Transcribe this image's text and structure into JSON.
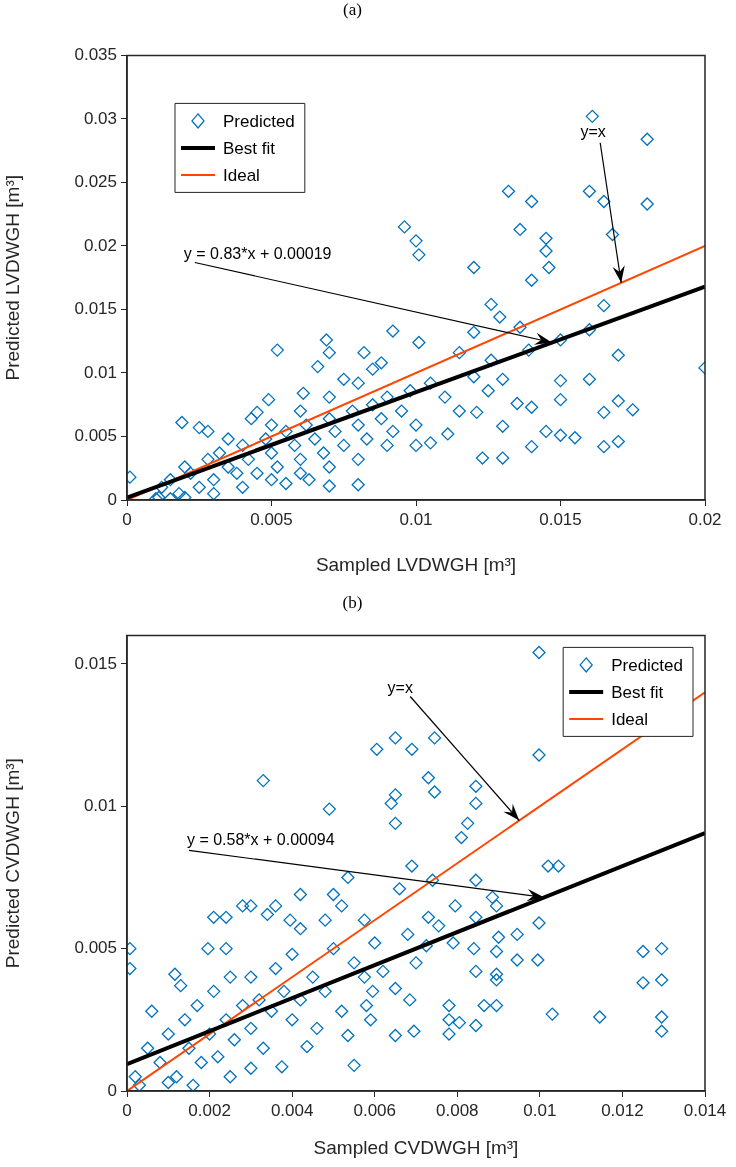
{
  "chart_data": [
    {
      "type": "scatter",
      "title": "(a)",
      "xlabel": "Sampled LVDWGH [m³]",
      "ylabel": "Predicted LVDWGH [m³]",
      "xlim": [
        0,
        0.02
      ],
      "xticks": [
        0,
        0.005,
        0.01,
        0.015,
        0.02
      ],
      "ylim": [
        0,
        0.035
      ],
      "yticks": [
        0,
        0.005,
        0.01,
        0.015,
        0.02,
        0.025,
        0.03,
        0.035
      ],
      "legend": "top left",
      "annotations": [
        {
          "text": "y = 0.83*x + 0.00019",
          "x": 0.0147,
          "y": 0.0124
        },
        {
          "text": "y=x",
          "x": 0.0171,
          "y": 0.0171
        }
      ],
      "series": [
        {
          "name": "Predicted",
          "marker": "diamond",
          "color": "#0072bd",
          "x": [
            0.018,
            0.0161,
            0.0132,
            0.014,
            0.016,
            0.0165,
            0.018,
            0.0136,
            0.0145,
            0.0145,
            0.0146,
            0.0168,
            0.012,
            0.014,
            0.0165,
            0.017,
            0.02,
            0.016,
            0.017,
            0.0175,
            0.0165,
            0.0165,
            0.017,
            0.015,
            0.0155,
            0.014,
            0.0145,
            0.013,
            0.0123,
            0.015,
            0.015,
            0.016,
            0.015,
            0.0136,
            0.0126,
            0.0129,
            0.014,
            0.013,
            0.0121,
            0.013,
            0.0135,
            0.0111,
            0.0105,
            0.0115,
            0.012,
            0.0126,
            0.0139,
            0.0096,
            0.01,
            0.0101,
            0.0092,
            0.0052,
            0.0069,
            0.007,
            0.0082,
            0.0101,
            0.0019,
            0.0001,
            0.0011,
            0.007,
            0.008,
            0.0025,
            0.0045,
            0.0049,
            0.0061,
            0.0066,
            0.0085,
            0.0088,
            0.0075,
            0.001,
            0.0012,
            0.0015,
            0.0018,
            0.002,
            0.0022,
            0.0025,
            0.0028,
            0.003,
            0.0032,
            0.0035,
            0.0038,
            0.004,
            0.0042,
            0.0045,
            0.0048,
            0.005,
            0.0052,
            0.0055,
            0.0058,
            0.006,
            0.0062,
            0.0065,
            0.0068,
            0.007,
            0.0072,
            0.0075,
            0.0078,
            0.008,
            0.0083,
            0.0085,
            0.0088,
            0.009,
            0.0092,
            0.0095,
            0.0098,
            0.01,
            0.0105,
            0.011,
            0.0115,
            0.012,
            0.0125,
            0.003,
            0.004,
            0.005,
            0.006,
            0.007,
            0.002,
            0.0015,
            0.0055,
            0.0063,
            0.008,
            0.009,
            0.01,
            0.0035,
            0.0028,
            0.005,
            0.006,
            0.007,
            0.008,
            0.0043
          ],
          "values": [
            0.0284,
            0.0302,
            0.0243,
            0.0235,
            0.0243,
            0.0235,
            0.0233,
            0.0213,
            0.0206,
            0.0196,
            0.0183,
            0.0209,
            0.0183,
            0.0173,
            0.0153,
            0.0114,
            0.0104,
            0.0095,
            0.0078,
            0.0071,
            0.0069,
            0.0042,
            0.0046,
            0.0051,
            0.0049,
            0.0042,
            0.0054,
            0.0033,
            0.0033,
            0.0094,
            0.0079,
            0.0134,
            0.0126,
            0.0136,
            0.0154,
            0.0144,
            0.0073,
            0.0058,
            0.0069,
            0.0095,
            0.0076,
            0.0052,
            0.0045,
            0.0116,
            0.0132,
            0.011,
            0.0118,
            0.0215,
            0.0204,
            0.0193,
            0.0133,
            0.0118,
            0.0126,
            0.0116,
            0.0116,
            0.0124,
            0.0061,
            0.0018,
            0.0002,
            0.0011,
            0.0012,
            0.0057,
            0.0069,
            0.0079,
            0.0084,
            0.0105,
            0.0103,
            0.0108,
            0.0095,
            0.0001,
            0.001,
            0.0016,
            0.0005,
            0.0026,
            0.0021,
            0.001,
            0.0032,
            0.0016,
            0.0037,
            0.0026,
            0.0021,
            0.0043,
            0.0032,
            0.0021,
            0.0048,
            0.0037,
            0.0026,
            0.0054,
            0.0043,
            0.0032,
            0.0059,
            0.0048,
            0.0037,
            0.0064,
            0.0054,
            0.0043,
            0.007,
            0.0059,
            0.0048,
            0.0075,
            0.0064,
            0.0081,
            0.0054,
            0.007,
            0.0086,
            0.0059,
            0.0092,
            0.0081,
            0.007,
            0.0097,
            0.0086,
            0.0005,
            0.001,
            0.0016,
            0.0021,
            0.0026,
            0.0002,
            0.0001,
            0.0013,
            0.0016,
            0.0032,
            0.0043,
            0.0043,
            0.0048,
            0.0054,
            0.0059,
            0.007,
            0.0081,
            0.0092,
            0.0064
          ]
        },
        {
          "name": "Best fit",
          "type": "line",
          "color": "#000000",
          "x": [
            0,
            0.02
          ],
          "values": [
            0.00019,
            0.01679
          ]
        },
        {
          "name": "Ideal",
          "type": "line",
          "color": "#ff4500",
          "x": [
            0,
            0.02
          ],
          "values": [
            0,
            0.02
          ]
        }
      ]
    },
    {
      "type": "scatter",
      "title": "(b)",
      "xlabel": "Sampled CVDWGH [m³]",
      "ylabel": "Predicted CVDWGH [m³]",
      "xlim": [
        0,
        0.014
      ],
      "xticks": [
        0,
        0.002,
        0.004,
        0.006,
        0.008,
        0.01,
        0.012,
        0.014
      ],
      "ylim": [
        0,
        0.016
      ],
      "yticks": [
        0,
        0.005,
        0.01,
        0.015
      ],
      "legend": "top right",
      "annotations": [
        {
          "text": "y = 0.58*x + 0.00094",
          "x": 0.0101,
          "y": 0.0068
        },
        {
          "text": "y=x",
          "x": 0.0095,
          "y": 0.0095
        }
      ],
      "series": [
        {
          "name": "Predicted",
          "marker": "diamond",
          "color": "#0072bd",
          "x": [
            0.0033,
            0.0049,
            0.00605,
            0.0065,
            0.0069,
            0.0065,
            0.0064,
            0.0065,
            0.00535,
            0.0042,
            0.005,
            0.0052,
            0.0069,
            0.0066,
            0.0021,
            0.0024,
            0.0028,
            0.003,
            0.0036,
            0.0034,
            7e-05,
            7e-05,
            0.00116,
            0.00196,
            0.0024,
            0.00375,
            0.0055,
            0.00436,
            0.00535,
            0.0065,
            0.00685,
            0.00695,
            0.00575,
            0.0048,
            0.00395,
            0.0042,
            0.00575,
            0.00595,
            0.0059,
            0.00998,
            0.00745,
            0.00998,
            0.0073,
            0.00745,
            0.00845,
            0.00845,
            0.00825,
            0.0081,
            0.0102,
            0.01045,
            0.00845,
            0.0074,
            0.00885,
            0.00895,
            0.00795,
            0.00998,
            0.0073,
            0.00755,
            0.00845,
            0.00945,
            0.009,
            0.0084,
            0.0079,
            0.00895,
            0.00945,
            0.00995,
            0.0125,
            0.01295,
            0.0125,
            0.01295,
            0.01295,
            0.01295,
            0.01145,
            0.0103,
            0.00845,
            0.00895,
            0.00895,
            0.00895,
            0.00865,
            0.0078,
            0.0078,
            0.0078,
            0.00805,
            0.00845,
            0.00725,
            0.0002,
            0.0005,
            0.0008,
            0.001,
            0.0012,
            0.0014,
            0.0015,
            0.0017,
            0.0018,
            0.002,
            0.0021,
            0.0022,
            0.0024,
            0.0025,
            0.0026,
            0.0028,
            0.003,
            0.003,
            0.0032,
            0.0033,
            0.0035,
            0.0036,
            0.0038,
            0.004,
            0.004,
            0.0042,
            0.0045,
            0.0046,
            0.0048,
            0.005,
            0.0052,
            0.0055,
            0.0058,
            0.006,
            0.0062,
            0.0065,
            0.0068,
            0.007,
            0.0003,
            0.001,
            0.0006,
            0.0016,
            0.0025,
            0.003,
            0.0013
          ],
          "values": [
            0.0109,
            0.0099,
            0.012,
            0.0124,
            0.012,
            0.0104,
            0.0101,
            0.0094,
            0.0075,
            0.0069,
            0.0069,
            0.0065,
            0.0079,
            0.0071,
            0.0061,
            0.0061,
            0.0065,
            0.0065,
            0.0065,
            0.0062,
            0.005,
            0.0043,
            0.0041,
            0.005,
            0.005,
            0.00085,
            0.0009,
            0.00156,
            0.00195,
            0.00195,
            0.0032,
            0.0021,
            0.006,
            0.006,
            0.006,
            0.0057,
            0.004,
            0.0035,
            0.0025,
            0.0154,
            0.0124,
            0.0118,
            0.011,
            0.0105,
            0.0107,
            0.0101,
            0.0094,
            0.0089,
            0.0079,
            0.0079,
            0.0074,
            0.0074,
            0.0068,
            0.0065,
            0.0065,
            0.0059,
            0.0061,
            0.0058,
            0.0061,
            0.0055,
            0.0054,
            0.005,
            0.0052,
            0.0049,
            0.0046,
            0.0046,
            0.0049,
            0.005,
            0.0038,
            0.0039,
            0.0026,
            0.0021,
            0.0026,
            0.0027,
            0.0042,
            0.0041,
            0.0039,
            0.003,
            0.003,
            0.003,
            0.0025,
            0.002,
            0.0024,
            0.0023,
            0.0051,
            0.0005,
            0.0015,
            0.001,
            0.002,
            0.0005,
            0.0025,
            0.0015,
            0.003,
            0.001,
            0.002,
            0.0035,
            0.0012,
            0.0025,
            0.004,
            0.0018,
            0.003,
            0.0022,
            0.004,
            0.0032,
            0.0015,
            0.0028,
            0.0043,
            0.0035,
            0.0025,
            0.0048,
            0.0032,
            0.004,
            0.0022,
            0.0035,
            0.005,
            0.0028,
            0.0045,
            0.003,
            0.0052,
            0.0042,
            0.0036,
            0.0055,
            0.0045,
            0.0002,
            0.0003,
            0.0028,
            0.0002,
            0.0005,
            0.0008,
            0.0037
          ]
        },
        {
          "name": "Best fit",
          "type": "line",
          "color": "#000000",
          "x": [
            0,
            0.014
          ],
          "values": [
            0.00094,
            0.00906
          ]
        },
        {
          "name": "Ideal",
          "type": "line",
          "color": "#ff4500",
          "x": [
            0,
            0.014
          ],
          "values": [
            0,
            0.014
          ]
        }
      ]
    }
  ]
}
